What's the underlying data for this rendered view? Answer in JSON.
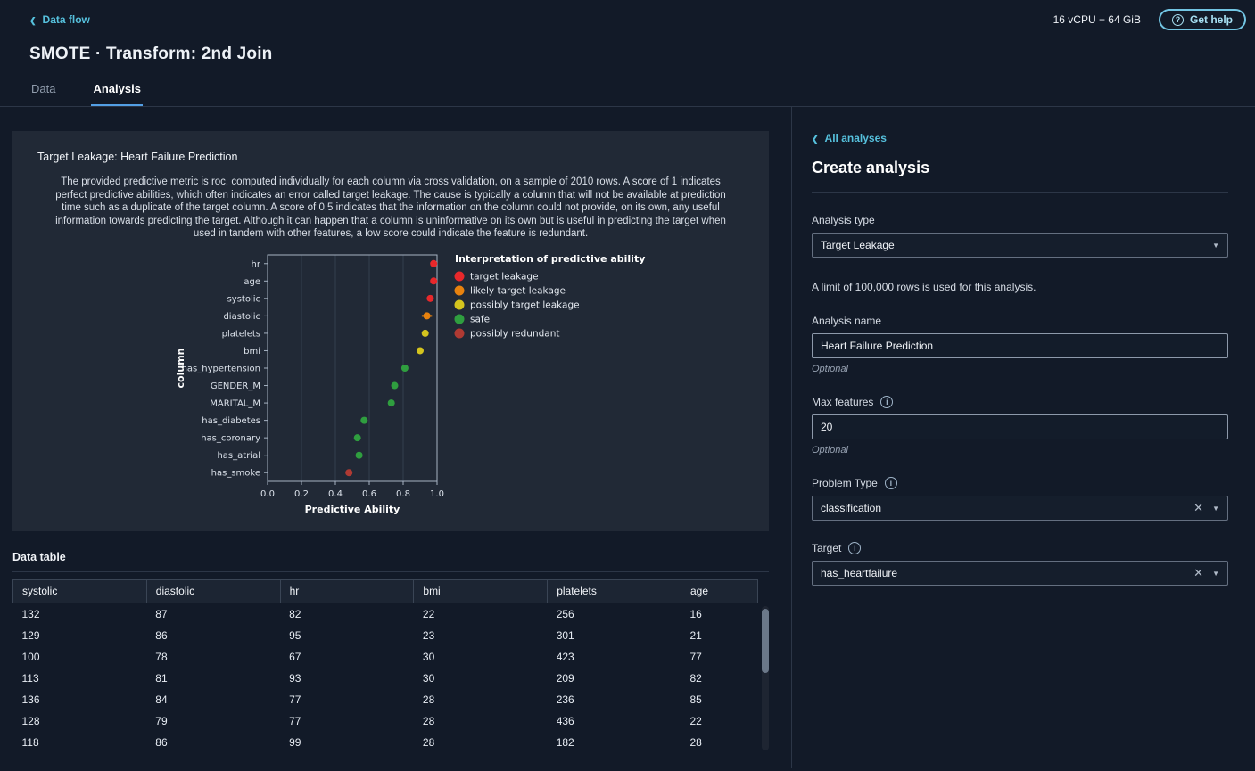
{
  "topbar": {
    "back_link": "Data flow",
    "resources": "16 vCPU + 64 GiB",
    "get_help_label": "Get help"
  },
  "header": {
    "title": "SMOTE · Transform: 2nd Join",
    "tabs": [
      {
        "label": "Data"
      },
      {
        "label": "Analysis"
      }
    ]
  },
  "analysis_card": {
    "title": "Target Leakage: Heart Failure Prediction",
    "description": "The provided predictive metric is roc, computed individually for each column via cross validation, on a sample of 2010 rows. A score of 1 indicates perfect predictive abilities, which often indicates an error called target leakage. The cause is typically a column that will not be available at prediction time such as a duplicate of the target column. A score of 0.5 indicates that the information on the column could not provide, on its own, any useful information towards predicting the target. Although it can happen that a column is uninformative on its own but is useful in predicting the target when used in tandem with other features, a low score could indicate the feature is redundant."
  },
  "chart_data": {
    "type": "scatter",
    "title": "",
    "xlabel": "Predictive Ability",
    "ylabel": "column",
    "xlim": [
      0.0,
      1.0
    ],
    "xticks": [
      "0.0",
      "0.2",
      "0.4",
      "0.6",
      "0.8",
      "1.0"
    ],
    "grid": true,
    "legend": {
      "title": "Interpretation of predictive ability",
      "position": "right",
      "entries": [
        {
          "label": "target leakage",
          "color": "#e8282b"
        },
        {
          "label": "likely target leakage",
          "color": "#e8820e"
        },
        {
          "label": "possibly target leakage",
          "color": "#d4c41e"
        },
        {
          "label": "safe",
          "color": "#2f9e3f"
        },
        {
          "label": "possibly redundant",
          "color": "#b03a33"
        }
      ]
    },
    "points": [
      {
        "column": "hr",
        "value": 0.98,
        "err": 0.005,
        "category": "target leakage",
        "color": "#e8282b"
      },
      {
        "column": "age",
        "value": 0.98,
        "err": 0.005,
        "category": "target leakage",
        "color": "#e8282b"
      },
      {
        "column": "systolic",
        "value": 0.96,
        "err": 0.012,
        "category": "target leakage",
        "color": "#e8282b"
      },
      {
        "column": "diastolic",
        "value": 0.94,
        "err": 0.03,
        "category": "likely target leakage",
        "color": "#e8820e"
      },
      {
        "column": "platelets",
        "value": 0.93,
        "err": 0.008,
        "category": "possibly target leakage",
        "color": "#d4c41e"
      },
      {
        "column": "bmi",
        "value": 0.9,
        "err": 0.016,
        "category": "possibly target leakage",
        "color": "#d4c41e"
      },
      {
        "column": "has_hypertension",
        "value": 0.81,
        "err": 0.01,
        "category": "safe",
        "color": "#2f9e3f"
      },
      {
        "column": "GENDER_M",
        "value": 0.75,
        "err": 0.008,
        "category": "safe",
        "color": "#2f9e3f"
      },
      {
        "column": "MARITAL_M",
        "value": 0.73,
        "err": 0.008,
        "category": "safe",
        "color": "#2f9e3f"
      },
      {
        "column": "has_diabetes",
        "value": 0.57,
        "err": 0.012,
        "category": "safe",
        "color": "#2f9e3f"
      },
      {
        "column": "has_coronary",
        "value": 0.53,
        "err": 0.01,
        "category": "safe",
        "color": "#2f9e3f"
      },
      {
        "column": "has_atrial",
        "value": 0.54,
        "err": 0.01,
        "category": "safe",
        "color": "#2f9e3f"
      },
      {
        "column": "has_smoke",
        "value": 0.48,
        "err": 0.01,
        "category": "possibly redundant",
        "color": "#b03a33"
      }
    ]
  },
  "data_table": {
    "title": "Data table",
    "columns": [
      "systolic",
      "diastolic",
      "hr",
      "bmi",
      "platelets",
      "age"
    ],
    "rows": [
      [
        "132",
        "87",
        "82",
        "22",
        "256",
        "16"
      ],
      [
        "129",
        "86",
        "95",
        "23",
        "301",
        "21"
      ],
      [
        "100",
        "78",
        "67",
        "30",
        "423",
        "77"
      ],
      [
        "113",
        "81",
        "93",
        "30",
        "209",
        "82"
      ],
      [
        "136",
        "84",
        "77",
        "28",
        "236",
        "85"
      ],
      [
        "128",
        "79",
        "77",
        "28",
        "436",
        "22"
      ],
      [
        "118",
        "86",
        "99",
        "28",
        "182",
        "28"
      ]
    ]
  },
  "side_panel": {
    "back_link": "All analyses",
    "title": "Create analysis",
    "analysis_type": {
      "label": "Analysis type",
      "value": "Target Leakage"
    },
    "limit_note": "A limit of 100,000 rows is used for this analysis.",
    "analysis_name": {
      "label": "Analysis name",
      "value": "Heart Failure Prediction",
      "optional": "Optional"
    },
    "max_features": {
      "label": "Max features",
      "value": "20",
      "optional": "Optional"
    },
    "problem_type": {
      "label": "Problem Type",
      "value": "classification"
    },
    "target": {
      "label": "Target",
      "value": "has_heartfailure"
    }
  }
}
